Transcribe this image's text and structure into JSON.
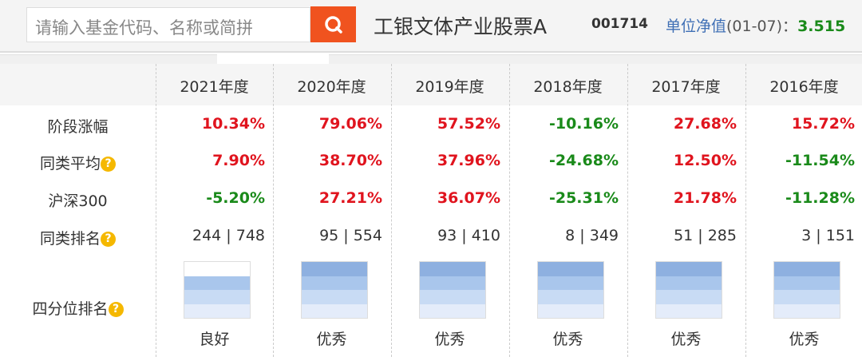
{
  "search": {
    "placeholder": "请输入基金代码、名称或简拼"
  },
  "fund": {
    "name": "工银文体产业股票A",
    "code": "001714",
    "nav_label": "单位净值",
    "nav_date": "(01-07)：",
    "nav_value": "3.515"
  },
  "rows": {
    "labels": [
      "阶段涨幅",
      "同类平均",
      "沪深300",
      "同类排名",
      "四分位排名"
    ],
    "info_icon": "?"
  },
  "years": [
    {
      "label": "2021年度",
      "ret": "10.34%",
      "avg": "7.90%",
      "hs": "-5.20%",
      "rank": "244 | 748",
      "quartile": 3,
      "grade": "良好"
    },
    {
      "label": "2020年度",
      "ret": "79.06%",
      "avg": "38.70%",
      "hs": "27.21%",
      "rank": "95 | 554",
      "quartile": 4,
      "grade": "优秀"
    },
    {
      "label": "2019年度",
      "ret": "57.52%",
      "avg": "37.96%",
      "hs": "36.07%",
      "rank": "93 | 410",
      "quartile": 4,
      "grade": "优秀"
    },
    {
      "label": "2018年度",
      "ret": "-10.16%",
      "avg": "-24.68%",
      "hs": "-25.31%",
      "rank": "8 | 349",
      "quartile": 4,
      "grade": "优秀"
    },
    {
      "label": "2017年度",
      "ret": "27.68%",
      "avg": "12.50%",
      "hs": "21.78%",
      "rank": "51 | 285",
      "quartile": 4,
      "grade": "优秀"
    },
    {
      "label": "2016年度",
      "ret": "15.72%",
      "avg": "-11.54%",
      "hs": "-11.28%",
      "rank": "3 | 151",
      "quartile": 4,
      "grade": "优秀"
    }
  ],
  "colors": {
    "positive": "#e0141e",
    "negative": "#1a8a1a",
    "accent": "#f0531f",
    "quartile": [
      "#e4ecfa",
      "#c8dbf4",
      "#a9c6ec",
      "#8eb0e0"
    ]
  }
}
